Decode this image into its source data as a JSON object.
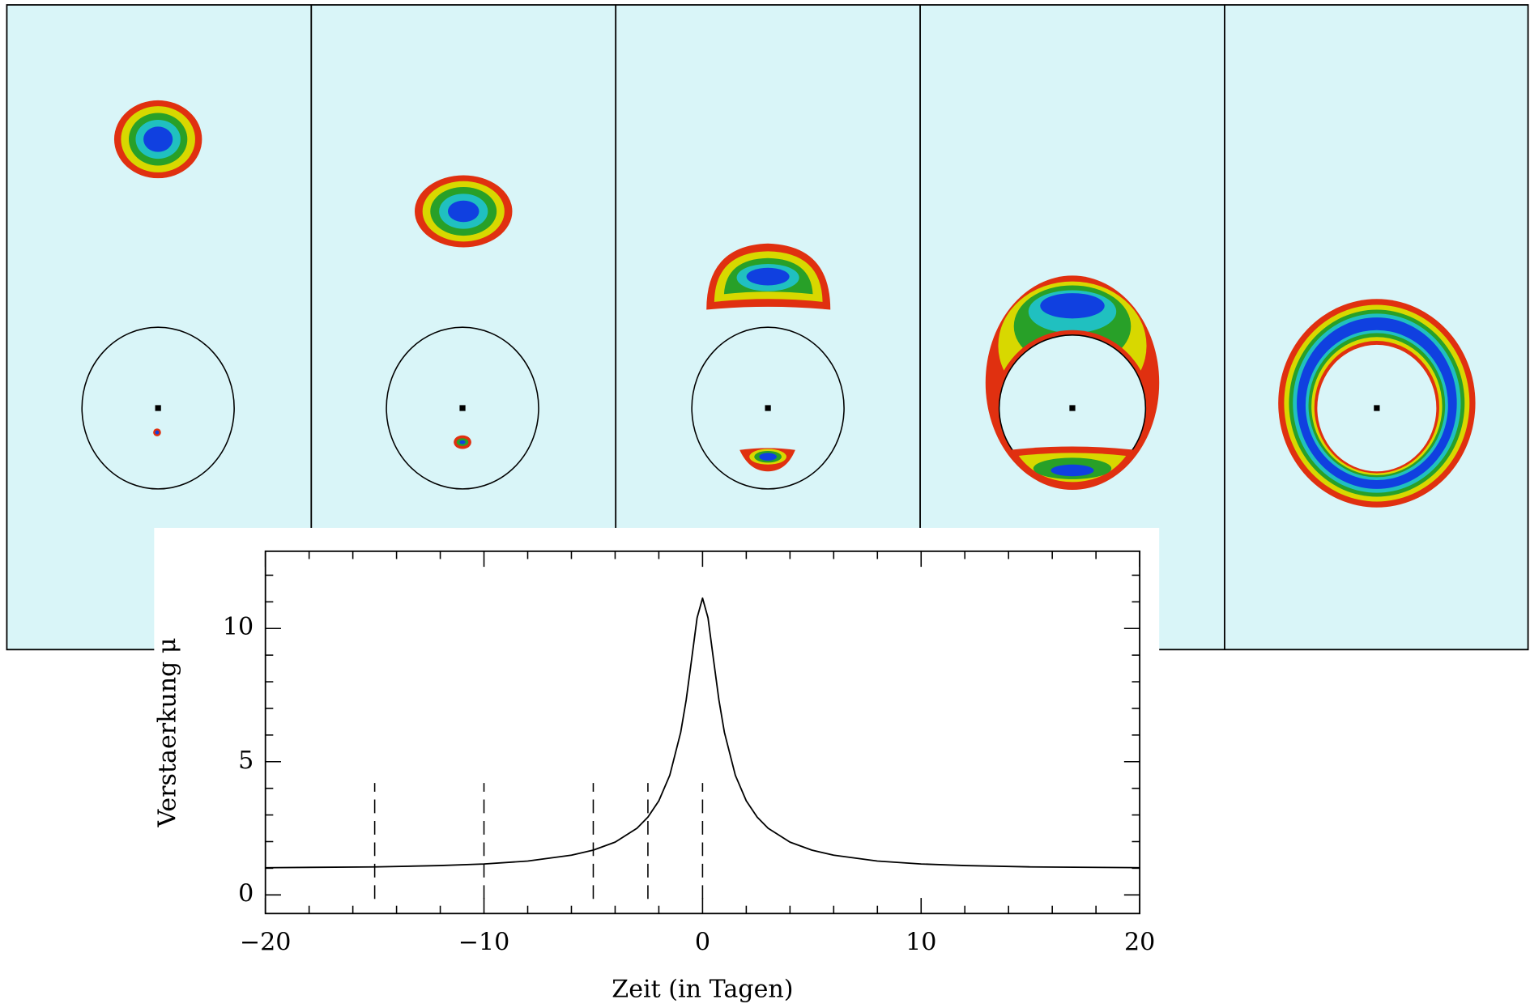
{
  "chart_data": {
    "type": "line",
    "xlabel": "Zeit (in Tagen)",
    "ylabel": "Verstaerkung μ",
    "x": [
      -20,
      -15,
      -12,
      -10,
      -8,
      -6,
      -5,
      -4,
      -3,
      -2.5,
      -2,
      -1.5,
      -1,
      -0.75,
      -0.5,
      -0.25,
      0,
      0.25,
      0.5,
      0.75,
      1,
      1.5,
      2,
      2.5,
      3,
      4,
      5,
      6,
      8,
      10,
      12,
      15,
      20
    ],
    "values": [
      1.02,
      1.05,
      1.1,
      1.16,
      1.27,
      1.49,
      1.68,
      1.98,
      2.5,
      2.92,
      3.53,
      4.49,
      6.1,
      7.31,
      8.84,
      10.4,
      11.14,
      10.4,
      8.84,
      7.31,
      6.1,
      4.49,
      3.53,
      2.92,
      2.5,
      1.98,
      1.68,
      1.49,
      1.27,
      1.16,
      1.1,
      1.05,
      1.02
    ],
    "color": "#000000",
    "marker_lines": {
      "x": [
        -15,
        -10,
        -5,
        -2.5,
        0
      ],
      "ymin": -0.15,
      "ymax": 4.2
    },
    "xlim": [
      -20,
      20
    ],
    "ylim": [
      -0.7,
      12.9
    ],
    "xticks": [
      {
        "value": -20,
        "label": "−20"
      },
      {
        "value": -10,
        "label": "−10"
      },
      0,
      10,
      20
    ],
    "yticks": [
      0,
      5,
      10
    ],
    "xminorticks": [
      -18,
      -16,
      -14,
      -12,
      -8,
      -6,
      -4,
      -2,
      2,
      4,
      6,
      8,
      12,
      14,
      16,
      18
    ],
    "yminorticks": [
      1,
      2,
      3,
      4,
      6,
      7,
      8,
      9,
      11,
      12
    ]
  }
}
